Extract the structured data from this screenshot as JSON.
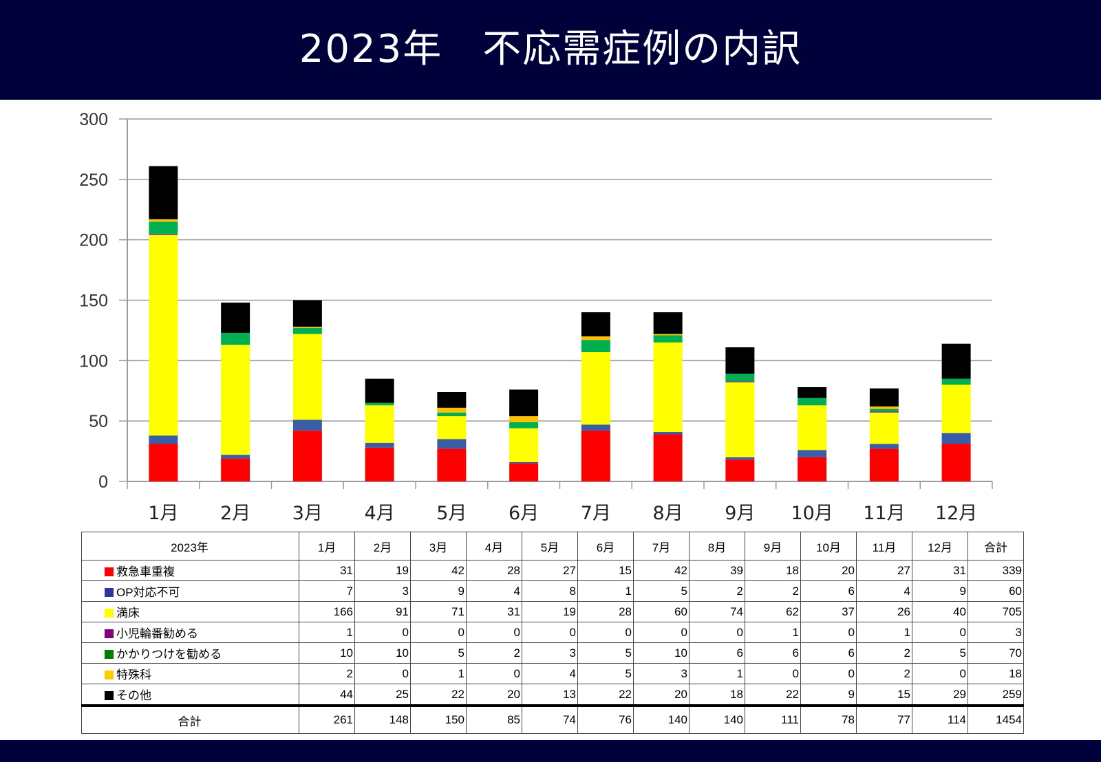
{
  "title": "2023年　不応需症例の内訳",
  "chart_data": {
    "type": "bar",
    "stacked": true,
    "title": "2023年　不応需症例の内訳",
    "categories": [
      "1月",
      "2月",
      "3月",
      "4月",
      "5月",
      "6月",
      "7月",
      "8月",
      "9月",
      "10月",
      "11月",
      "12月"
    ],
    "ylim": [
      0,
      300
    ],
    "yticks": [
      0,
      50,
      100,
      150,
      200,
      250,
      300
    ],
    "grid": true,
    "xlabel": "",
    "ylabel": "",
    "series": [
      {
        "name": "救急車重複",
        "bar_color": "#ff0000",
        "legend_color": "#ff0000",
        "values": [
          31,
          19,
          42,
          28,
          27,
          15,
          42,
          39,
          18,
          20,
          27,
          31
        ],
        "total": 339
      },
      {
        "name": "OP対応不可",
        "bar_color": "#3a5ea6",
        "legend_color": "#333399",
        "values": [
          7,
          3,
          9,
          4,
          8,
          1,
          5,
          2,
          2,
          6,
          4,
          9
        ],
        "total": 60
      },
      {
        "name": "満床",
        "bar_color": "#ffff00",
        "legend_color": "#ffff00",
        "values": [
          166,
          91,
          71,
          31,
          19,
          28,
          60,
          74,
          62,
          37,
          26,
          40
        ],
        "total": 705
      },
      {
        "name": "小児輪番勧める",
        "bar_color": "#7030a0",
        "legend_color": "#800080",
        "values": [
          1,
          0,
          0,
          0,
          0,
          0,
          0,
          0,
          1,
          0,
          1,
          0
        ],
        "total": 3
      },
      {
        "name": "かかりつけを勧める",
        "bar_color": "#00b050",
        "legend_color": "#008000",
        "values": [
          10,
          10,
          5,
          2,
          3,
          5,
          10,
          6,
          6,
          6,
          2,
          5
        ],
        "total": 70
      },
      {
        "name": "特殊科",
        "bar_color": "#ffc000",
        "legend_color": "#ffcc00",
        "values": [
          2,
          0,
          1,
          0,
          4,
          5,
          3,
          1,
          0,
          0,
          2,
          0
        ],
        "total": 18
      },
      {
        "name": "その他",
        "bar_color": "#000000",
        "legend_color": "#000000",
        "values": [
          44,
          25,
          22,
          20,
          13,
          22,
          20,
          18,
          22,
          9,
          15,
          29
        ],
        "total": 259
      }
    ],
    "totals": [
      261,
      148,
      150,
      85,
      74,
      76,
      140,
      140,
      111,
      78,
      77,
      114
    ],
    "grand_total": 1454
  },
  "table": {
    "corner": "2023年",
    "total_header": "合計",
    "total_row_label": "合計"
  }
}
